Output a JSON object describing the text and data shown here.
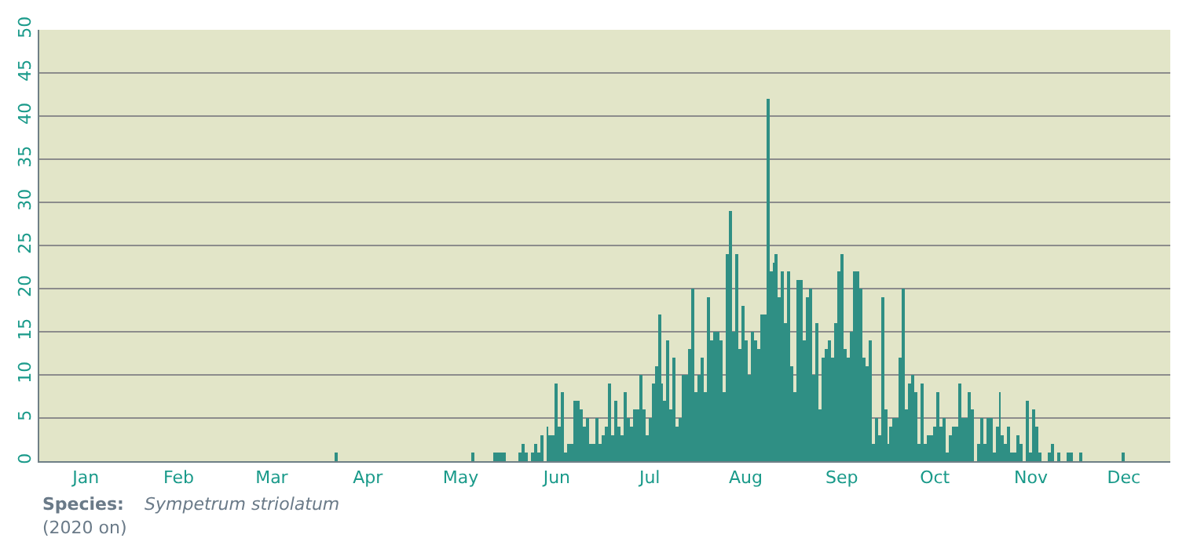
{
  "chart_data": {
    "type": "bar",
    "x": [
      "--04-06",
      "--05-20",
      "--05-27",
      "--05-28",
      "--05-29",
      "--05-30",
      "--06-04",
      "--06-05",
      "--06-06",
      "--06-08",
      "--06-09",
      "--06-10",
      "--06-11",
      "--06-13",
      "--06-14",
      "--06-15",
      "--06-16",
      "--06-17",
      "--06-18",
      "--06-19",
      "--06-20",
      "--06-21",
      "--06-22",
      "--06-23",
      "--06-24",
      "--06-25",
      "--06-26",
      "--06-27",
      "--06-28",
      "--06-29",
      "--06-30",
      "--07-01",
      "--07-02",
      "--07-03",
      "--07-04",
      "--07-05",
      "--07-06",
      "--07-07",
      "--07-08",
      "--07-09",
      "--07-10",
      "--07-11",
      "--07-12",
      "--07-13",
      "--07-14",
      "--07-15",
      "--07-16",
      "--07-17",
      "--07-18",
      "--07-19",
      "--07-20",
      "--07-21",
      "--07-22",
      "--07-23",
      "--07-24",
      "--07-25",
      "--07-26",
      "--07-27",
      "--07-28",
      "--07-29",
      "--07-30",
      "--07-31",
      "--08-01",
      "--08-02",
      "--08-03",
      "--08-04",
      "--08-05",
      "--08-06",
      "--08-07",
      "--08-08",
      "--08-09",
      "--08-10",
      "--08-11",
      "--08-12",
      "--08-13",
      "--08-14",
      "--08-15",
      "--08-16",
      "--08-17",
      "--08-18",
      "--08-19",
      "--08-20",
      "--08-21",
      "--08-22",
      "--08-23",
      "--08-24",
      "--08-25",
      "--08-26",
      "--08-27",
      "--08-28",
      "--08-29",
      "--08-30",
      "--08-31",
      "--09-01",
      "--09-02",
      "--09-03",
      "--09-04",
      "--09-05",
      "--09-06",
      "--09-07",
      "--09-08",
      "--09-09",
      "--09-10",
      "--09-11",
      "--09-12",
      "--09-13",
      "--09-14",
      "--09-15",
      "--09-16",
      "--09-17",
      "--09-18",
      "--09-19",
      "--09-20",
      "--09-21",
      "--09-22",
      "--09-23",
      "--09-24",
      "--09-25",
      "--09-26",
      "--09-27",
      "--09-28",
      "--09-29",
      "--09-30",
      "--10-01",
      "--10-02",
      "--10-03",
      "--10-04",
      "--10-05",
      "--10-06",
      "--10-07",
      "--10-08",
      "--10-09",
      "--10-10",
      "--10-11",
      "--10-12",
      "--10-13",
      "--10-14",
      "--10-15",
      "--10-16",
      "--10-17",
      "--10-18",
      "--10-19",
      "--10-20",
      "--10-21",
      "--10-22",
      "--10-23",
      "--10-24",
      "--10-25",
      "--10-26",
      "--10-27",
      "--10-28",
      "--10-30",
      "--10-31",
      "--11-01",
      "--11-02",
      "--11-03",
      "--11-04",
      "--11-05",
      "--11-06",
      "--11-07",
      "--11-08",
      "--11-09",
      "--11-10",
      "--11-11",
      "--11-12",
      "--11-13",
      "--11-15",
      "--11-16",
      "--11-17",
      "--11-18",
      "--11-19",
      "--11-22",
      "--11-23",
      "--11-25",
      "--11-28",
      "--11-29",
      "--12-02",
      "--12-16"
    ],
    "values": [
      1,
      1,
      1,
      1,
      1,
      1,
      1,
      2,
      1,
      1,
      2,
      1,
      3,
      4,
      3,
      3,
      9,
      4,
      8,
      1,
      2,
      2,
      7,
      7,
      6,
      4,
      5,
      2,
      2,
      5,
      2,
      3,
      4,
      9,
      3,
      7,
      4,
      3,
      8,
      5,
      4,
      6,
      6,
      10,
      6,
      3,
      5,
      9,
      11,
      17,
      9,
      7,
      14,
      6,
      12,
      4,
      5,
      10,
      10,
      13,
      20,
      8,
      10,
      12,
      8,
      19,
      14,
      15,
      15,
      14,
      8,
      24,
      29,
      15,
      24,
      13,
      18,
      14,
      10,
      15,
      14,
      13,
      17,
      17,
      42,
      22,
      23,
      24,
      19,
      22,
      16,
      22,
      11,
      8,
      21,
      21,
      14,
      19,
      20,
      10,
      16,
      6,
      12,
      13,
      14,
      12,
      16,
      22,
      24,
      13,
      12,
      15,
      22,
      22,
      20,
      12,
      11,
      14,
      2,
      5,
      3,
      19,
      6,
      2,
      4,
      5,
      5,
      12,
      20,
      6,
      9,
      10,
      8,
      2,
      9,
      2,
      3,
      3,
      4,
      8,
      4,
      5,
      1,
      3,
      4,
      4,
      9,
      5,
      5,
      8,
      6,
      2,
      5,
      2,
      5,
      5,
      1,
      4,
      8,
      3,
      2,
      4,
      1,
      1,
      3,
      2,
      7,
      1,
      6,
      4,
      1,
      1,
      2,
      1,
      1,
      1,
      1,
      1
    ],
    "color": "#2f8f84",
    "xlim": [
      "--01-01",
      "--12-31"
    ],
    "xticks": [
      {
        "value": "--01-16",
        "label": "Jan"
      },
      {
        "value": "--02-15",
        "label": "Feb"
      },
      {
        "value": "--03-16",
        "label": "Mar"
      },
      {
        "value": "--04-16",
        "label": "Apr"
      },
      {
        "value": "--05-16",
        "label": "May"
      },
      {
        "value": "--06-16",
        "label": "Jun"
      },
      {
        "value": "--07-16",
        "label": "Jul"
      },
      {
        "value": "--08-16",
        "label": "Aug"
      },
      {
        "value": "--09-16",
        "label": "Sep"
      },
      {
        "value": "--10-16",
        "label": "Oct"
      },
      {
        "value": "--11-16",
        "label": "Nov"
      },
      {
        "value": "--12-16",
        "label": "Dec"
      }
    ],
    "ylim": [
      0,
      50
    ],
    "yticks": [
      0,
      5,
      10,
      15,
      20,
      25,
      30,
      35,
      40,
      45,
      50
    ],
    "grid": "y",
    "annotations": [
      "Species:",
      "Sympetrum striolatum",
      "(2020 on)"
    ]
  }
}
